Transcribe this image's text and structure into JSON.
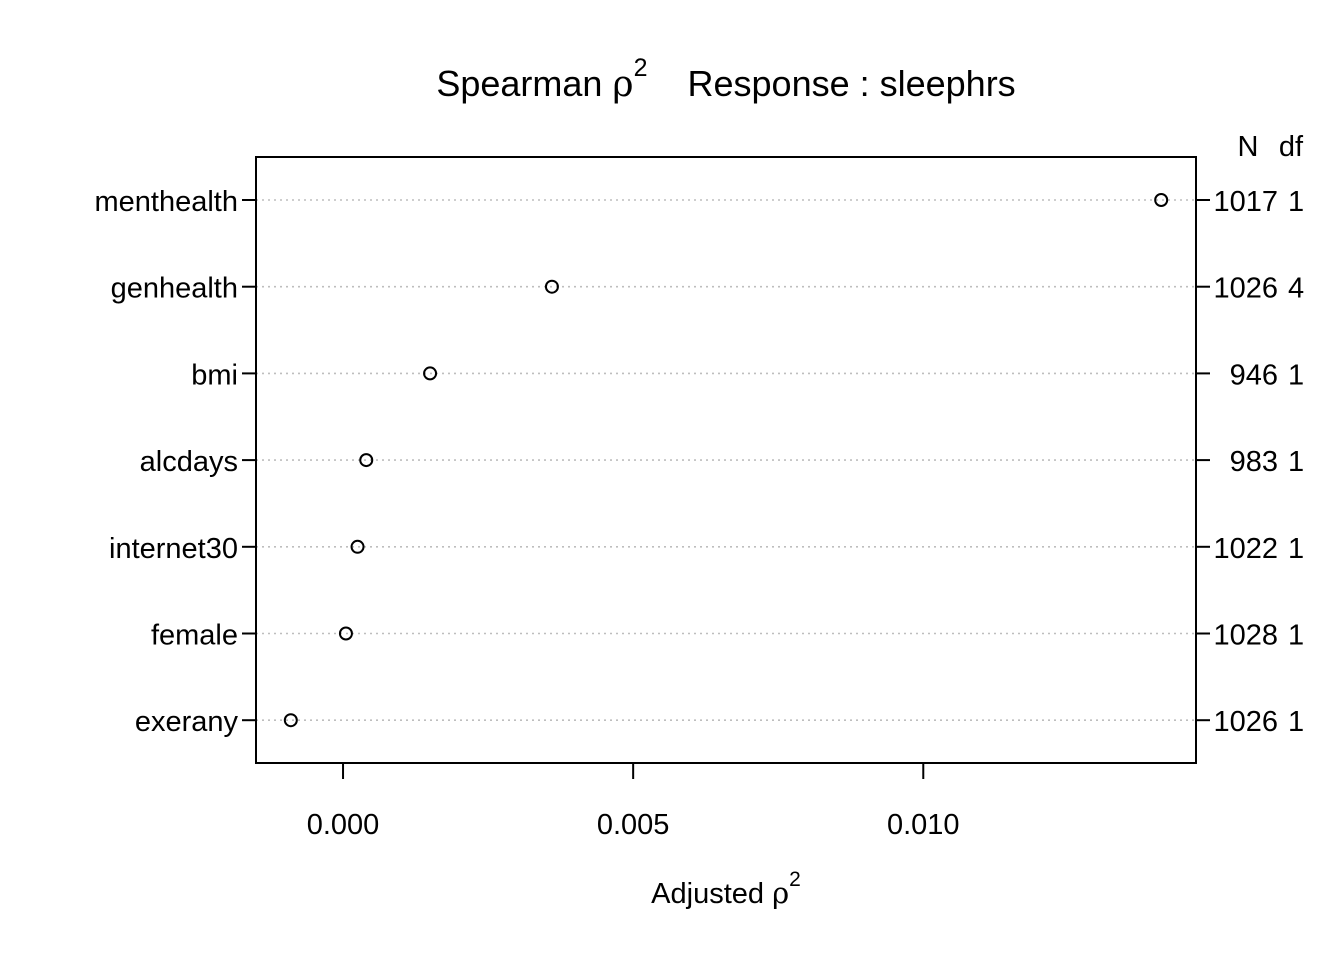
{
  "chart_data": {
    "type": "scatter",
    "title": {
      "prefix": "Spearman ",
      "symbol": "ρ",
      "superscript": "2",
      "response_label": "Response : sleephrs"
    },
    "xlabel": {
      "text": "Adjusted ",
      "symbol": "ρ",
      "superscript": "2"
    },
    "xlim": [
      -0.0015,
      0.0147
    ],
    "xticks": [
      "0.000",
      "0.005",
      "0.010"
    ],
    "right_headers": {
      "n": "N",
      "df": "df"
    },
    "categories": [
      "menthealth",
      "genhealth",
      "bmi",
      "alcdays",
      "internet30",
      "female",
      "exerany"
    ],
    "values": [
      0.0141,
      0.0036,
      0.0015,
      0.0004,
      0.00025,
      5e-05,
      -0.0009
    ],
    "n": [
      "1017",
      "1026",
      "946",
      "983",
      "1022",
      "1028",
      "1026"
    ],
    "df": [
      "1",
      "4",
      "1",
      "1",
      "1",
      "1",
      "1"
    ],
    "grid": "dotted horizontal",
    "colors": {
      "points": "#000000",
      "grid": "#bebebe",
      "axis": "#000000"
    }
  }
}
